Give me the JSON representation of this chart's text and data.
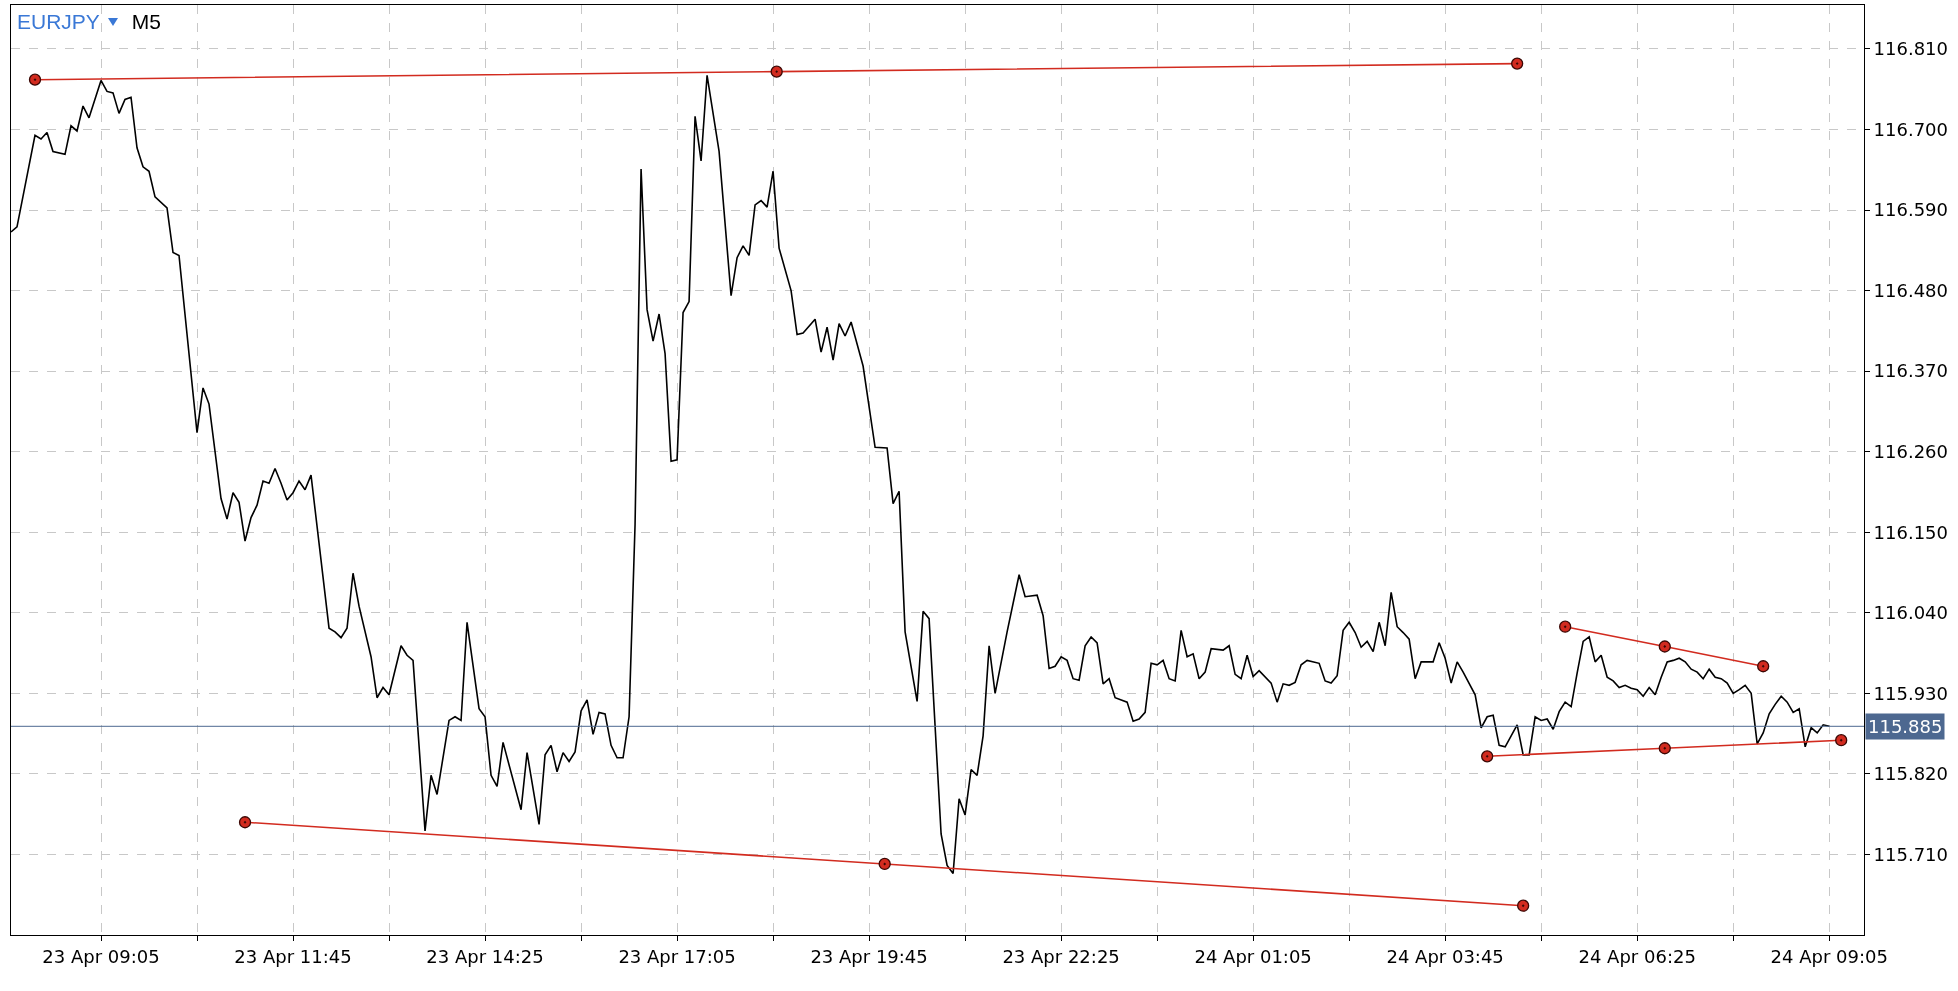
{
  "chart_data": {
    "type": "line",
    "title": "EURJPY",
    "subtitle": "M5",
    "xlim": [
      "--04-23T07:50",
      "--04-24T09:34"
    ],
    "xticks": [
      {
        "value": "--04-23T09:05",
        "label": "23 Apr 09:05"
      },
      {
        "value": "--04-23T10:25",
        "label": null
      },
      {
        "value": "--04-23T11:45",
        "label": "23 Apr 11:45"
      },
      {
        "value": "--04-23T13:05",
        "label": null
      },
      {
        "value": "--04-23T14:25",
        "label": "23 Apr 14:25"
      },
      {
        "value": "--04-23T15:45",
        "label": null
      },
      {
        "value": "--04-23T17:05",
        "label": "23 Apr 17:05"
      },
      {
        "value": "--04-23T18:25",
        "label": null
      },
      {
        "value": "--04-23T19:45",
        "label": "23 Apr 19:45"
      },
      {
        "value": "--04-23T21:05",
        "label": null
      },
      {
        "value": "--04-23T22:25",
        "label": "23 Apr 22:25"
      },
      {
        "value": "--04-23T23:45",
        "label": null
      },
      {
        "value": "--04-24T01:05",
        "label": "24 Apr 01:05"
      },
      {
        "value": "--04-24T02:25",
        "label": null
      },
      {
        "value": "--04-24T03:45",
        "label": "24 Apr 03:45"
      },
      {
        "value": "--04-24T05:05",
        "label": null
      },
      {
        "value": "--04-24T06:25",
        "label": "24 Apr 06:25"
      },
      {
        "value": "--04-24T07:45",
        "label": null
      },
      {
        "value": "--04-24T09:05",
        "label": "24 Apr 09:05"
      }
    ],
    "ylim": [
      115.6,
      116.87
    ],
    "yticks": [
      {
        "value": 116.81,
        "label": "116.810"
      },
      {
        "value": 116.7,
        "label": "116.700"
      },
      {
        "value": 116.59,
        "label": "116.590"
      },
      {
        "value": 116.48,
        "label": "116.480"
      },
      {
        "value": 116.37,
        "label": "116.370"
      },
      {
        "value": 116.26,
        "label": "116.260"
      },
      {
        "value": 116.15,
        "label": "116.150"
      },
      {
        "value": 116.04,
        "label": "116.040"
      },
      {
        "value": 115.93,
        "label": "115.930"
      },
      {
        "value": 115.82,
        "label": "115.820"
      },
      {
        "value": 115.71,
        "label": "115.710"
      }
    ],
    "grid": true,
    "line_style": "solid",
    "series": [
      {
        "color": "#000000",
        "marker": "none",
        "x": [
          "--04-23T07:50",
          "--04-23T07:55",
          "--04-23T08:10",
          "--04-23T08:15",
          "--04-23T08:20",
          "--04-23T08:25",
          "--04-23T08:35",
          "--04-23T08:40",
          "--04-23T08:45",
          "--04-23T08:50",
          "--04-23T08:55",
          "--04-23T09:05",
          "--04-23T09:10",
          "--04-23T09:15",
          "--04-23T09:20",
          "--04-23T09:25",
          "--04-23T09:30",
          "--04-23T09:35",
          "--04-23T09:40",
          "--04-23T09:45",
          "--04-23T09:50",
          "--04-23T10:00",
          "--04-23T10:05",
          "--04-23T10:10",
          "--04-23T10:25",
          "--04-23T10:30",
          "--04-23T10:35",
          "--04-23T10:45",
          "--04-23T10:50",
          "--04-23T10:55",
          "--04-23T11:00",
          "--04-23T11:05",
          "--04-23T11:10",
          "--04-23T11:15",
          "--04-23T11:20",
          "--04-23T11:25",
          "--04-23T11:30",
          "--04-23T11:35",
          "--04-23T11:40",
          "--04-23T11:45",
          "--04-23T11:50",
          "--04-23T11:55",
          "--04-23T12:00",
          "--04-23T12:15",
          "--04-23T12:20",
          "--04-23T12:25",
          "--04-23T12:30",
          "--04-23T12:35",
          "--04-23T12:40",
          "--04-23T12:50",
          "--04-23T12:55",
          "--04-23T13:00",
          "--04-23T13:05",
          "--04-23T13:15",
          "--04-23T13:20",
          "--04-23T13:25",
          "--04-23T13:35",
          "--04-23T13:40",
          "--04-23T13:45",
          "--04-23T13:55",
          "--04-23T14:00",
          "--04-23T14:05",
          "--04-23T14:10",
          "--04-23T14:20",
          "--04-23T14:25",
          "--04-23T14:30",
          "--04-23T14:35",
          "--04-23T14:40",
          "--04-23T14:55",
          "--04-23T15:00",
          "--04-23T15:10",
          "--04-23T15:15",
          "--04-23T15:20",
          "--04-23T15:25",
          "--04-23T15:30",
          "--04-23T15:35",
          "--04-23T15:40",
          "--04-23T15:45",
          "--04-23T15:50",
          "--04-23T15:55",
          "--04-23T16:00",
          "--04-23T16:05",
          "--04-23T16:10",
          "--04-23T16:15",
          "--04-23T16:20",
          "--04-23T16:25",
          "--04-23T16:30",
          "--04-23T16:35",
          "--04-23T16:40",
          "--04-23T16:45",
          "--04-23T16:50",
          "--04-23T16:55",
          "--04-23T17:00",
          "--04-23T17:05",
          "--04-23T17:10",
          "--04-23T17:15",
          "--04-23T17:20",
          "--04-23T17:25",
          "--04-23T17:30",
          "--04-23T17:40",
          "--04-23T17:50",
          "--04-23T17:55",
          "--04-23T18:00",
          "--04-23T18:05",
          "--04-23T18:10",
          "--04-23T18:15",
          "--04-23T18:20",
          "--04-23T18:25",
          "--04-23T18:30",
          "--04-23T18:40",
          "--04-23T18:45",
          "--04-23T18:50",
          "--04-23T19:00",
          "--04-23T19:05",
          "--04-23T19:10",
          "--04-23T19:15",
          "--04-23T19:20",
          "--04-23T19:25",
          "--04-23T19:30",
          "--04-23T19:40",
          "--04-23T19:50",
          "--04-23T20:00",
          "--04-23T20:05",
          "--04-23T20:10",
          "--04-23T20:15",
          "--04-23T20:25",
          "--04-23T20:30",
          "--04-23T20:35",
          "--04-23T20:45",
          "--04-23T20:50",
          "--04-23T20:55",
          "--04-23T21:00",
          "--04-23T21:05",
          "--04-23T21:10",
          "--04-23T21:15",
          "--04-23T21:20",
          "--04-23T21:25",
          "--04-23T21:30",
          "--04-23T21:40",
          "--04-23T21:50",
          "--04-23T21:55",
          "--04-23T22:05",
          "--04-23T22:10",
          "--04-23T22:15",
          "--04-23T22:20",
          "--04-23T22:25",
          "--04-23T22:30",
          "--04-23T22:35",
          "--04-23T22:40",
          "--04-23T22:45",
          "--04-23T22:50",
          "--04-23T22:55",
          "--04-23T23:00",
          "--04-23T23:05",
          "--04-23T23:10",
          "--04-23T23:20",
          "--04-23T23:25",
          "--04-23T23:30",
          "--04-23T23:35",
          "--04-23T23:40",
          "--04-23T23:45",
          "--04-23T23:50",
          "--04-23T23:55",
          "--04-24T00:00",
          "--04-24T00:05",
          "--04-24T00:10",
          "--04-24T00:15",
          "--04-24T00:20",
          "--04-24T00:25",
          "--04-24T00:30",
          "--04-24T00:40",
          "--04-24T00:45",
          "--04-24T00:50",
          "--04-24T00:55",
          "--04-24T01:00",
          "--04-24T01:05",
          "--04-24T01:10",
          "--04-24T01:20",
          "--04-24T01:25",
          "--04-24T01:30",
          "--04-24T01:35",
          "--04-24T01:40",
          "--04-24T01:45",
          "--04-24T01:50",
          "--04-24T02:00",
          "--04-24T02:05",
          "--04-24T02:10",
          "--04-24T02:15",
          "--04-24T02:20",
          "--04-24T02:25",
          "--04-24T02:30",
          "--04-24T02:35",
          "--04-24T02:40",
          "--04-24T02:45",
          "--04-24T02:50",
          "--04-24T02:55",
          "--04-24T03:00",
          "--04-24T03:05",
          "--04-24T03:10",
          "--04-24T03:15",
          "--04-24T03:20",
          "--04-24T03:25",
          "--04-24T03:30",
          "--04-24T03:35",
          "--04-24T03:40",
          "--04-24T03:45",
          "--04-24T03:50",
          "--04-24T03:55",
          "--04-24T04:00",
          "--04-24T04:10",
          "--04-24T04:15",
          "--04-24T04:20",
          "--04-24T04:25",
          "--04-24T04:30",
          "--04-24T04:35",
          "--04-24T04:45",
          "--04-24T04:50",
          "--04-24T04:55",
          "--04-24T05:00",
          "--04-24T05:05",
          "--04-24T05:10",
          "--04-24T05:15",
          "--04-24T05:20",
          "--04-24T05:25",
          "--04-24T05:30",
          "--04-24T05:35",
          "--04-24T05:40",
          "--04-24T05:45",
          "--04-24T05:50",
          "--04-24T05:55",
          "--04-24T06:00",
          "--04-24T06:05",
          "--04-24T06:10",
          "--04-24T06:15",
          "--04-24T06:20",
          "--04-24T06:25",
          "--04-24T06:30",
          "--04-24T06:35",
          "--04-24T06:40",
          "--04-24T06:45",
          "--04-24T06:50",
          "--04-24T06:55",
          "--04-24T07:00",
          "--04-24T07:05",
          "--04-24T07:10",
          "--04-24T07:15",
          "--04-24T07:20",
          "--04-24T07:25",
          "--04-24T07:30",
          "--04-24T07:35",
          "--04-24T07:40",
          "--04-24T07:45",
          "--04-24T07:50",
          "--04-24T07:55",
          "--04-24T08:00",
          "--04-24T08:05",
          "--04-24T08:10",
          "--04-24T08:15",
          "--04-24T08:20",
          "--04-24T08:25",
          "--04-24T08:30",
          "--04-24T08:35",
          "--04-24T08:40",
          "--04-24T08:45",
          "--04-24T08:50",
          "--04-24T08:55",
          "--04-24T09:00",
          "--04-24T09:05"
        ],
        "values": [
          116.56,
          116.567,
          116.692,
          116.687,
          116.696,
          116.67,
          116.666,
          116.705,
          116.698,
          116.732,
          116.716,
          116.767,
          116.752,
          116.75,
          116.722,
          116.741,
          116.744,
          116.675,
          116.649,
          116.643,
          116.608,
          116.593,
          116.532,
          116.528,
          116.286,
          116.347,
          116.325,
          116.196,
          116.168,
          116.204,
          116.191,
          116.138,
          116.17,
          116.187,
          116.22,
          116.217,
          116.237,
          116.217,
          116.194,
          116.204,
          116.22,
          116.208,
          116.228,
          116.019,
          116.014,
          116.006,
          116.019,
          116.094,
          116.049,
          115.98,
          115.924,
          115.938,
          115.928,
          115.995,
          115.982,
          115.975,
          115.742,
          115.818,
          115.792,
          115.893,
          115.898,
          115.893,
          116.027,
          115.909,
          115.898,
          115.818,
          115.803,
          115.863,
          115.771,
          115.849,
          115.751,
          115.846,
          115.859,
          115.823,
          115.849,
          115.837,
          115.85,
          115.906,
          115.921,
          115.874,
          115.904,
          115.902,
          115.859,
          115.842,
          115.842,
          115.898,
          116.161,
          116.646,
          116.454,
          116.411,
          116.448,
          116.394,
          116.247,
          116.249,
          116.45,
          116.465,
          116.718,
          116.657,
          116.774,
          116.67,
          116.473,
          116.525,
          116.541,
          116.528,
          116.597,
          116.603,
          116.594,
          116.643,
          116.538,
          116.48,
          116.42,
          116.422,
          116.441,
          116.396,
          116.43,
          116.385,
          116.435,
          116.418,
          116.437,
          116.377,
          116.266,
          116.265,
          116.189,
          116.206,
          116.014,
          115.919,
          116.042,
          116.032,
          115.738,
          115.695,
          115.684,
          115.786,
          115.764,
          115.826,
          115.818,
          115.872,
          115.995,
          115.93,
          116.014,
          116.092,
          116.062,
          116.064,
          116.036,
          115.964,
          115.967,
          115.98,
          115.975,
          115.95,
          115.948,
          115.995,
          116.007,
          115.999,
          115.943,
          115.95,
          115.924,
          115.918,
          115.892,
          115.895,
          115.904,
          115.971,
          115.969,
          115.975,
          115.95,
          115.947,
          116.016,
          115.98,
          115.984,
          115.95,
          115.959,
          115.991,
          115.989,
          115.995,
          115.956,
          115.95,
          115.982,
          115.953,
          115.961,
          115.944,
          115.918,
          115.943,
          115.941,
          115.945,
          115.969,
          115.975,
          115.971,
          115.947,
          115.944,
          115.954,
          116.016,
          116.027,
          116.013,
          115.993,
          116.001,
          115.987,
          116.027,
          115.995,
          116.068,
          116.021,
          116.013,
          116.004,
          115.95,
          115.973,
          115.973,
          115.973,
          115.999,
          115.978,
          115.944,
          115.973,
          115.959,
          115.928,
          115.883,
          115.898,
          115.9,
          115.859,
          115.857,
          115.887,
          115.846,
          115.846,
          115.898,
          115.893,
          115.895,
          115.881,
          115.905,
          115.918,
          115.912,
          115.958,
          116.001,
          116.007,
          115.973,
          115.982,
          115.952,
          115.947,
          115.938,
          115.941,
          115.937,
          115.935,
          115.926,
          115.938,
          115.928,
          115.952,
          115.973,
          115.975,
          115.978,
          115.973,
          115.963,
          115.959,
          115.95,
          115.963,
          115.952,
          115.95,
          115.944,
          115.93,
          115.935,
          115.941,
          115.93,
          115.861,
          115.876,
          115.902,
          115.915,
          115.926,
          115.918,
          115.904,
          115.909,
          115.857,
          115.883,
          115.876,
          115.887,
          115.885
        ]
      },
      {
        "color": "#d22b1f",
        "marker": "circle",
        "x": [
          "--04-23T08:10",
          "--04-23T18:28",
          "--04-24T04:45"
        ],
        "values": [
          116.768,
          116.779,
          116.79
        ]
      },
      {
        "color": "#d22b1f",
        "marker": "circle",
        "x": [
          "--04-23T11:05",
          "--04-23T19:58",
          "--04-24T04:50"
        ],
        "values": [
          115.754,
          115.697,
          115.64
        ]
      },
      {
        "color": "#d22b1f",
        "marker": "circle",
        "x": [
          "--04-24T05:25",
          "--04-24T06:48",
          "--04-24T08:10"
        ],
        "values": [
          116.021,
          115.994,
          115.967
        ]
      },
      {
        "color": "#d22b1f",
        "marker": "circle",
        "x": [
          "--04-24T04:20",
          "--04-24T06:48",
          "--04-24T09:15"
        ],
        "values": [
          115.844,
          115.855,
          115.866
        ]
      }
    ],
    "ref_lines": [
      {
        "axis": "y",
        "value": 115.885,
        "label": "115.885",
        "color": "#4d6890"
      }
    ]
  }
}
